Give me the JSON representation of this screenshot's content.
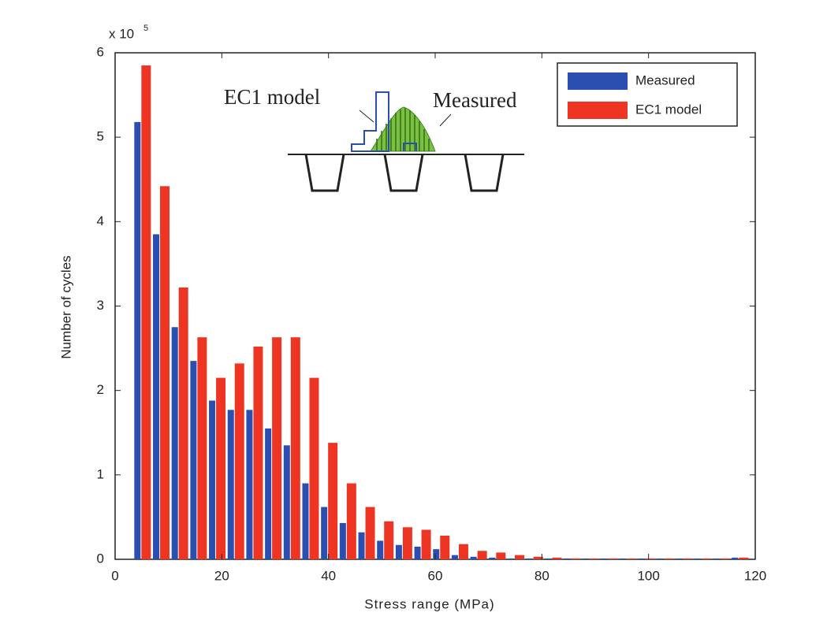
{
  "chart_data": {
    "type": "bar",
    "x_label": "Stress range (MPa)",
    "y_label": "Number of cycles",
    "y_multiplier": {
      "text": "x 10",
      "exponent": "5"
    },
    "annotations": [
      "EC1 model",
      "Measured"
    ],
    "x": [
      5,
      8.5,
      12,
      15.5,
      19,
      22.5,
      26,
      29.5,
      33,
      36.5,
      40,
      43.5,
      47,
      50.5,
      54,
      57.5,
      61,
      64.5,
      68,
      71.5,
      75,
      78.5,
      82,
      85.5,
      89,
      92.5,
      96,
      99.5,
      103,
      106.5,
      110,
      113.5,
      117
    ],
    "series": [
      {
        "name": "Measured",
        "color": "#2b4fb0",
        "values": [
          5.18,
          3.85,
          2.75,
          2.35,
          1.88,
          1.77,
          1.77,
          1.55,
          1.35,
          0.9,
          0.62,
          0.43,
          0.32,
          0.22,
          0.17,
          0.15,
          0.12,
          0.05,
          0.03,
          0.02,
          0.01,
          0.01,
          0.01,
          0.01,
          0.01,
          0.01,
          0.01,
          0.01,
          0.01,
          0.01,
          0.01,
          0.01,
          0.02
        ]
      },
      {
        "name": "EC1 model",
        "color": "#ee3524",
        "values": [
          5.85,
          4.42,
          3.22,
          2.63,
          2.15,
          2.32,
          2.52,
          2.63,
          2.63,
          2.15,
          1.38,
          0.9,
          0.62,
          0.45,
          0.38,
          0.35,
          0.28,
          0.18,
          0.1,
          0.08,
          0.05,
          0.03,
          0.02,
          0.01,
          0.01,
          0.01,
          0.01,
          0.01,
          0.01,
          0.01,
          0.01,
          0.01,
          0.02
        ]
      }
    ],
    "xlim": [
      0,
      120
    ],
    "xticks": [
      0,
      20,
      40,
      60,
      80,
      100,
      120
    ],
    "ylim": [
      0,
      6
    ],
    "yticks": [
      0,
      1,
      2,
      3,
      4,
      5,
      6
    ],
    "grid": false,
    "legend": "upper right"
  }
}
